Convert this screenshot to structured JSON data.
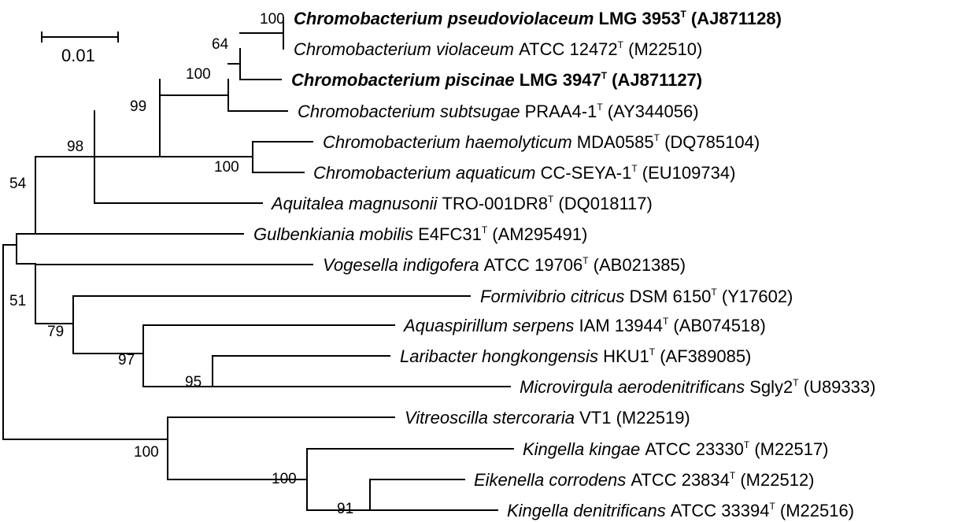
{
  "scale_bar": {
    "label": "0.01"
  },
  "taxa": [
    {
      "genus_species": "Chromobacterium pseudoviolaceum",
      "strain": "LMG 3953",
      "type_mark": "T",
      "accession": "(AJ871128)",
      "bold": true
    },
    {
      "genus_species": "Chromobacterium violaceum",
      "strain": "ATCC 12472",
      "type_mark": "T",
      "accession": "(M22510)",
      "bold": false
    },
    {
      "genus_species": "Chromobacterium piscinae",
      "strain": "LMG 3947",
      "type_mark": "T",
      "accession": "(AJ871127)",
      "bold": true
    },
    {
      "genus_species": "Chromobacterium subtsugae",
      "strain": "PRAA4-1",
      "type_mark": "T",
      "accession": "(AY344056)",
      "bold": false
    },
    {
      "genus_species": "Chromobacterium haemolyticum",
      "strain": "MDA0585",
      "type_mark": "T",
      "accession": "(DQ785104)",
      "bold": false
    },
    {
      "genus_species": "Chromobacterium aquaticum",
      "strain": "CC-SEYA-1",
      "type_mark": "T",
      "accession": "(EU109734)",
      "bold": false
    },
    {
      "genus_species": "Aquitalea magnusonii",
      "strain": "TRO-001DR8",
      "type_mark": "T",
      "accession": "(DQ018117)",
      "bold": false
    },
    {
      "genus_species": "Gulbenkiania mobilis",
      "strain": "E4FC31",
      "type_mark": "T",
      "accession": "(AM295491)",
      "bold": false
    },
    {
      "genus_species": "Vogesella indigofera",
      "strain": "ATCC 19706",
      "type_mark": "T",
      "accession": "(AB021385)",
      "bold": false
    },
    {
      "genus_species": "Formivibrio citricus",
      "strain": "DSM 6150",
      "type_mark": "T",
      "accession": "(Y17602)",
      "bold": false
    },
    {
      "genus_species": "Aquaspirillum serpens",
      "strain": "IAM 13944",
      "type_mark": "T",
      "accession": "(AB074518)",
      "bold": false
    },
    {
      "genus_species": "Laribacter hongkongensis",
      "strain": "HKU1",
      "type_mark": "T",
      "accession": "(AF389085)",
      "bold": false
    },
    {
      "genus_species": "Microvirgula aerodenitrificans",
      "strain": "Sgly2",
      "type_mark": "T",
      "accession": "(U89333)",
      "bold": false
    },
    {
      "genus_species": "Vitreoscilla stercoraria",
      "strain": "VT1",
      "type_mark": "",
      "accession": "(M22519)",
      "bold": false
    },
    {
      "genus_species": "Kingella kingae",
      "strain": "ATCC 23330",
      "type_mark": "T",
      "accession": "(M22517)",
      "bold": false
    },
    {
      "genus_species": "Eikenella corrodens",
      "strain": "ATCC 23834",
      "type_mark": "T",
      "accession": "(M22512)",
      "bold": false
    },
    {
      "genus_species": "Kingella denitrificans",
      "strain": "ATCC 33394",
      "type_mark": "T",
      "accession": "(M22516)",
      "bold": false
    }
  ],
  "bootstrap_values": [
    "100",
    "64",
    "100",
    "99",
    "100",
    "98",
    "54",
    "51",
    "79",
    "97",
    "95",
    "100",
    "100",
    "91"
  ]
}
